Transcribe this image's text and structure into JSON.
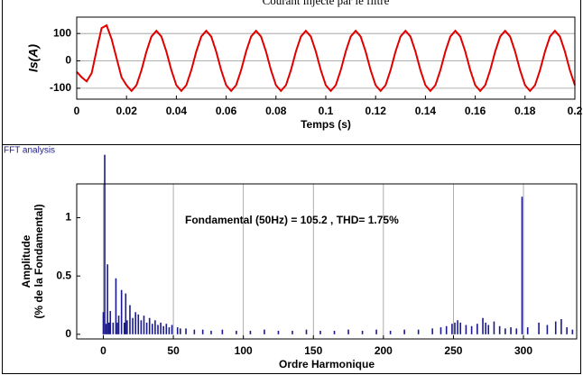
{
  "chart_data": [
    {
      "type": "line",
      "title": "Courant injecté par le filtre",
      "xlabel": "Temps (s)",
      "ylabel": "Is(A)",
      "x": [
        0,
        0.002,
        0.004,
        0.006,
        0.008,
        0.01,
        0.012,
        0.014,
        0.016,
        0.018,
        0.02,
        0.022,
        0.024,
        0.026,
        0.028,
        0.03,
        0.032,
        0.034,
        0.036,
        0.038,
        0.04,
        0.042,
        0.044,
        0.046,
        0.048,
        0.05,
        0.052,
        0.054,
        0.056,
        0.058,
        0.06,
        0.062,
        0.064,
        0.066,
        0.068,
        0.07,
        0.072,
        0.074,
        0.076,
        0.078,
        0.08,
        0.082,
        0.084,
        0.086,
        0.088,
        0.09,
        0.092,
        0.094,
        0.096,
        0.098,
        0.1,
        0.102,
        0.104,
        0.106,
        0.108,
        0.11,
        0.112,
        0.114,
        0.116,
        0.118,
        0.12,
        0.122,
        0.124,
        0.126,
        0.128,
        0.13,
        0.132,
        0.134,
        0.136,
        0.138,
        0.14,
        0.142,
        0.144,
        0.146,
        0.148,
        0.15,
        0.152,
        0.154,
        0.156,
        0.158,
        0.16,
        0.162,
        0.164,
        0.166,
        0.168,
        0.17,
        0.172,
        0.174,
        0.176,
        0.178,
        0.18,
        0.182,
        0.184,
        0.186,
        0.188,
        0.19,
        0.192,
        0.194,
        0.196,
        0.198,
        0.2
      ],
      "series": [
        {
          "name": "Is",
          "color": "#e00000",
          "values": [
            -40,
            -60,
            -75,
            -45,
            40,
            120,
            130,
            80,
            10,
            -60,
            -89,
            -110,
            -89,
            -34,
            34,
            89,
            110,
            89,
            34,
            -34,
            -89,
            -110,
            -89,
            -34,
            34,
            89,
            110,
            89,
            34,
            -34,
            -89,
            -110,
            -89,
            -34,
            34,
            89,
            110,
            89,
            34,
            -34,
            -89,
            -110,
            -89,
            -34,
            34,
            89,
            110,
            89,
            34,
            -34,
            -89,
            -110,
            -89,
            -34,
            34,
            89,
            110,
            89,
            34,
            -34,
            -89,
            -110,
            -89,
            -34,
            34,
            89,
            110,
            89,
            34,
            -34,
            -89,
            -110,
            -89,
            -34,
            34,
            89,
            110,
            89,
            34,
            -34,
            -89,
            -110,
            -89,
            -34,
            34,
            89,
            110,
            89,
            34,
            -34,
            -89,
            -110,
            -89,
            -34,
            34,
            89,
            110,
            89,
            34,
            -34,
            -89
          ]
        }
      ],
      "xlim": [
        0,
        0.2
      ],
      "xticks": [
        0,
        0.02,
        0.04,
        0.06,
        0.08,
        0.1,
        0.12,
        0.14,
        0.16,
        0.18,
        0.2
      ],
      "ylim": [
        -140,
        160
      ],
      "yticks": [
        -100,
        0,
        100
      ],
      "grid": "y"
    },
    {
      "type": "bar",
      "title": "FFT analysis",
      "xlabel": "Ordre Harmonique",
      "ylabel": [
        "Amplitude",
        "(% de la Fondamental)"
      ],
      "annotation": "Fondamental (50Hz) = 105.2 , THD= 1.75%",
      "x": [
        0,
        1,
        2,
        3,
        4,
        5,
        7,
        9,
        10,
        11,
        13,
        15,
        16,
        17,
        19,
        21,
        23,
        25,
        27,
        29,
        31,
        33,
        35,
        37,
        39,
        41,
        43,
        45,
        47,
        49,
        53,
        55,
        59,
        65,
        71,
        77,
        85,
        95,
        105,
        115,
        125,
        135,
        145,
        155,
        165,
        175,
        185,
        195,
        205,
        215,
        225,
        235,
        241,
        245,
        249,
        251,
        253,
        255,
        259,
        263,
        267,
        271,
        273,
        275,
        279,
        283,
        287,
        291,
        295,
        299,
        303,
        311,
        317,
        323,
        327,
        331,
        335
      ],
      "series": [
        {
          "name": "Amplitude",
          "color": "#1a1a8c",
          "values": [
            0.19,
            1.54,
            0.09,
            0.6,
            0.1,
            0.2,
            0.1,
            0.48,
            0.1,
            0.16,
            0.38,
            0.1,
            0.35,
            0.12,
            0.25,
            0.14,
            0.19,
            0.17,
            0.12,
            0.16,
            0.1,
            0.14,
            0.09,
            0.12,
            0.08,
            0.1,
            0.07,
            0.09,
            0.06,
            0.08,
            0.06,
            0.05,
            0.05,
            0.04,
            0.04,
            0.03,
            0.04,
            0.03,
            0.03,
            0.04,
            0.03,
            0.03,
            0.04,
            0.03,
            0.03,
            0.04,
            0.03,
            0.04,
            0.03,
            0.04,
            0.04,
            0.05,
            0.06,
            0.07,
            0.09,
            0.1,
            0.12,
            0.1,
            0.08,
            0.07,
            0.09,
            0.14,
            0.1,
            0.08,
            0.11,
            0.07,
            0.05,
            0.06,
            0.05,
            1.18,
            0.06,
            0.1,
            0.08,
            0.11,
            0.13,
            0.06,
            0.04
          ]
        }
      ],
      "xlim": [
        -19,
        338
      ],
      "xticks": [
        0,
        50,
        100,
        150,
        200,
        250,
        300
      ],
      "ylim": [
        -0.04,
        1.29
      ],
      "yticks": [
        0,
        0.5,
        1
      ],
      "grid": "x"
    }
  ]
}
